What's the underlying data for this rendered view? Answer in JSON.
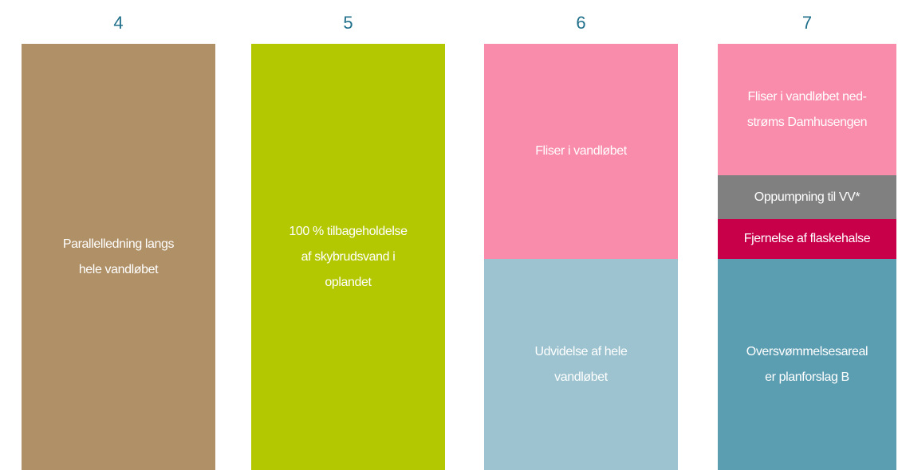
{
  "columns": [
    {
      "number": "4",
      "blocks": [
        {
          "lines": [
            "Parallelledning langs",
            "hele vandløbet"
          ]
        }
      ]
    },
    {
      "number": "5",
      "blocks": [
        {
          "lines": [
            "100 % tilbageholdelse",
            "af skybrudsvand i",
            "oplandet"
          ]
        }
      ]
    },
    {
      "number": "6",
      "blocks": [
        {
          "lines": [
            "Fliser i vandløbet"
          ]
        },
        {
          "lines": [
            "Udvidelse af hele",
            "vandløbet"
          ]
        }
      ]
    },
    {
      "number": "7",
      "blocks": [
        {
          "lines": [
            "Fliser i vandløbet ned-",
            "strøms Damhusengen"
          ]
        },
        {
          "lines": [
            "Oppumpning til VV*"
          ]
        },
        {
          "lines": [
            "Fjernelse af flaskehalse"
          ]
        },
        {
          "lines": [
            "Oversvømmelsesareal",
            "er planforslag B"
          ]
        }
      ]
    }
  ]
}
